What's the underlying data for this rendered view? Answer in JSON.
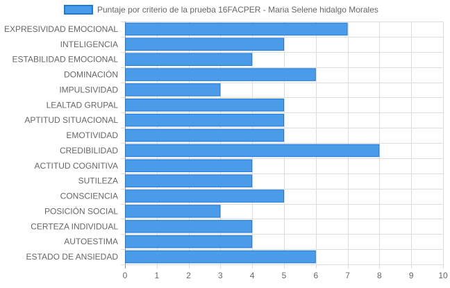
{
  "chart_data": {
    "type": "bar",
    "orientation": "horizontal",
    "categories": [
      "EXPRESIVIDAD EMOCIONAL",
      "INTELIGENCIA",
      "ESTABILIDAD EMOCIONAL",
      "DOMINACIÓN",
      "IMPULSIVIDAD",
      "LEALTAD GRUPAL",
      "APTITUD SITUACIONAL",
      "EMOTIVIDAD",
      "CREDIBILIDAD",
      "ACTITUD COGNITIVA",
      "SUTILEZA",
      "CONSCIENCIA",
      "POSICIÓN SOCIAL",
      "CERTEZA INDIVIDUAL",
      "AUTOESTIMA",
      "ESTADO DE ANSIEDAD"
    ],
    "series": [
      {
        "name": "Puntaje por criterio de la prueba 16FACPER - Maria Selene hidalgo Morales",
        "values": [
          7,
          5,
          4,
          6,
          3,
          5,
          5,
          5,
          8,
          4,
          4,
          5,
          3,
          4,
          4,
          6
        ],
        "color": "#4a9be8",
        "border_color": "#1f77d8"
      }
    ],
    "xlim": [
      0,
      10
    ],
    "x_ticks": [
      "0",
      "1",
      "2",
      "3",
      "4",
      "5",
      "6",
      "7",
      "8",
      "9",
      "10"
    ],
    "grid": true,
    "legend_position": "top",
    "gridline_color": "#dddddd",
    "zero_line_color": "#999999",
    "text_color": "#666666"
  }
}
